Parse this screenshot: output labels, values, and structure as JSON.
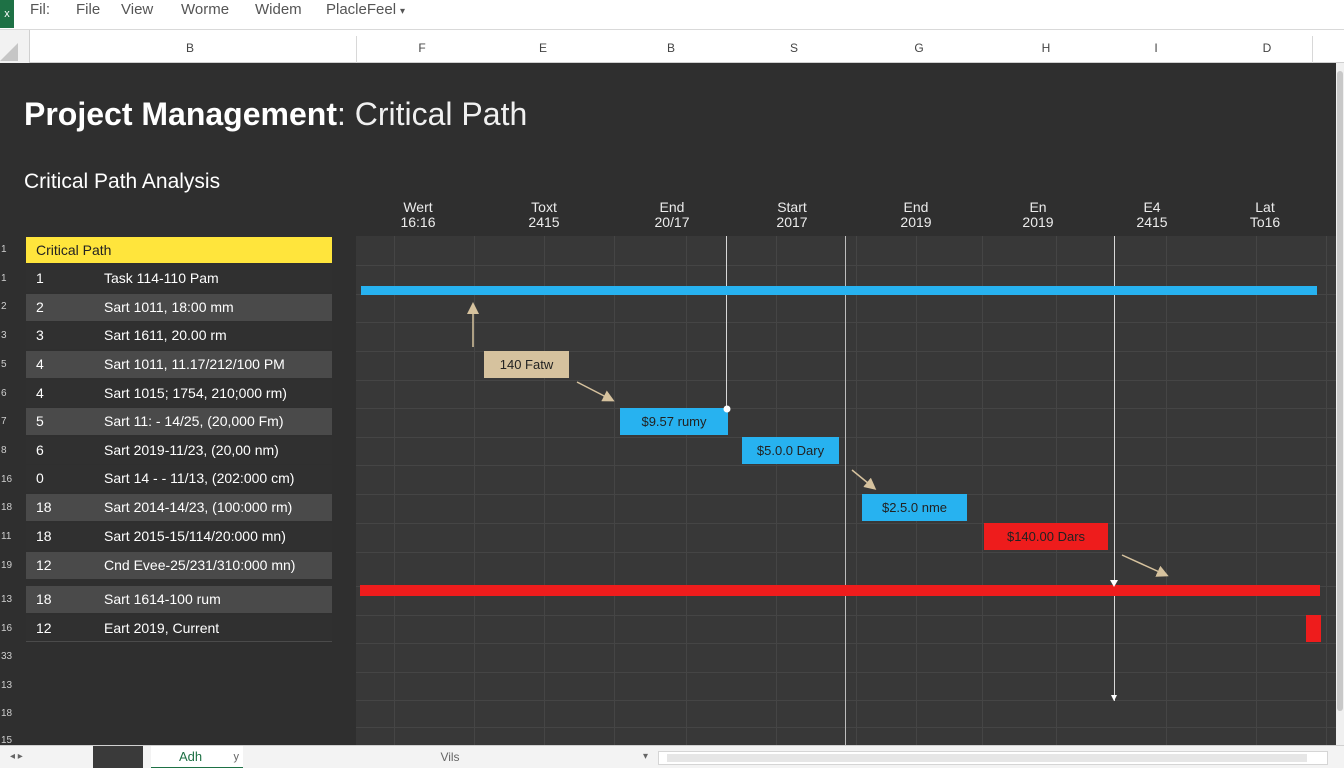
{
  "menu": {
    "app_icon": "excel-icon",
    "items": [
      "Fil:",
      "File",
      "View",
      "Worme",
      "Widem",
      "PlacleFeel"
    ]
  },
  "columns": [
    "B",
    "F",
    "E",
    "B",
    "S",
    "G",
    "H",
    "I",
    "D"
  ],
  "title": {
    "bold": "Project Management",
    "rest": ": Critical Path"
  },
  "subtitle": "Critical Path Analysis",
  "timeline_headers": [
    {
      "top": "Wert",
      "bottom": "16:16"
    },
    {
      "top": "Toxt",
      "bottom": "2415"
    },
    {
      "top": "End",
      "bottom": "20/17"
    },
    {
      "top": "Start",
      "bottom": "2017"
    },
    {
      "top": "End",
      "bottom": "2019"
    },
    {
      "top": "En",
      "bottom": "2019"
    },
    {
      "top": "E4",
      "bottom": "2415"
    },
    {
      "top": "Lat",
      "bottom": "To16"
    }
  ],
  "row_numbers": [
    "1",
    "1",
    "2",
    "3",
    "5",
    "6",
    "7",
    "8",
    "16",
    "18",
    "11",
    "19",
    "13",
    "16",
    "33",
    "13",
    "18",
    "15"
  ],
  "table": {
    "header": "Critical Path",
    "rows": [
      {
        "num": "1",
        "label": "Task 114-110 Pam"
      },
      {
        "num": "2",
        "label": "Sart 1011, 18:00 mm"
      },
      {
        "num": "3",
        "label": "Sart 1611, 20.00 rm"
      },
      {
        "num": "4",
        "label": "Sart 1011, 11.17/212/100 PM"
      },
      {
        "num": "4",
        "label": "Sart 1015; 1754, 210;000 rm)"
      },
      {
        "num": "5",
        "label": "Sart 11: - 14/25, (20,000 Fm)"
      },
      {
        "num": "6",
        "label": "Sart 2019-11/23, (20,00 nm)"
      },
      {
        "num": "0",
        "label": "Sart 14 - - 11/13, (202:000 cm)"
      },
      {
        "num": "18",
        "label": "Sart 2014-14/23, (100:000 rm)"
      },
      {
        "num": "18",
        "label": "Sart 2015-15/114/20:000 mn)"
      },
      {
        "num": "12",
        "label": "Cnd Evee-25/231/310:000 mn)"
      },
      {
        "num": "18",
        "label": "Sart 1614-100 rum"
      },
      {
        "num": "12",
        "label": "Eart 2019, Current"
      }
    ]
  },
  "gantt": {
    "boxes": [
      {
        "label": "140 Fatw",
        "color": "#d6c29e"
      },
      {
        "label": "$9.57 rumy",
        "color": "#27b2f0"
      },
      {
        "label": "$5.0.0 Dary",
        "color": "#27b2f0"
      },
      {
        "label": "$2.5.0 nme",
        "color": "#27b2f0"
      },
      {
        "label": "$140.00 Dars",
        "color": "#ee1c1c"
      }
    ],
    "blue_bar_color": "#27b2f0",
    "red_bar_color": "#ee1c1c"
  },
  "tabs": {
    "nav": "◂ ▸",
    "active": "Adh",
    "active_close": "y",
    "other": "Vils",
    "other_menu": "▾"
  }
}
